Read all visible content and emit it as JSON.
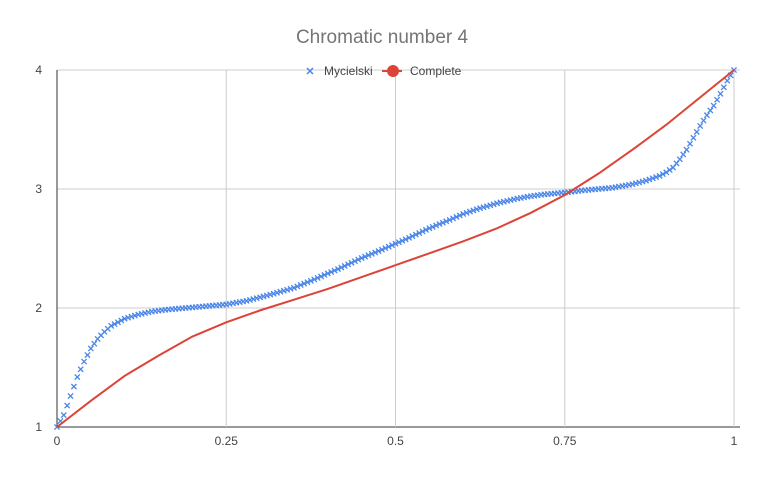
{
  "chart_data": {
    "type": "line",
    "title": "Chromatic number 4",
    "xlabel": "",
    "ylabel": "",
    "xlim": [
      0,
      1
    ],
    "ylim": [
      1,
      4
    ],
    "x_ticks": [
      {
        "value": 0,
        "label": "0"
      },
      {
        "value": 0.25,
        "label": "0.25"
      },
      {
        "value": 0.5,
        "label": "0.5"
      },
      {
        "value": 0.75,
        "label": "0.75"
      },
      {
        "value": 1,
        "label": "1"
      }
    ],
    "y_ticks": [
      {
        "value": 1,
        "label": "1"
      },
      {
        "value": 2,
        "label": "2"
      },
      {
        "value": 3,
        "label": "3"
      },
      {
        "value": 4,
        "label": "4"
      }
    ],
    "grid": true,
    "legend_position": "top",
    "series": [
      {
        "name": "Mycielski",
        "style": "markers-x",
        "color": "#4a86e8",
        "x": [
          0,
          0.01,
          0.02,
          0.03,
          0.04,
          0.05,
          0.06,
          0.07,
          0.08,
          0.09,
          0.1,
          0.12,
          0.14,
          0.16,
          0.18,
          0.2,
          0.22,
          0.25,
          0.28,
          0.3,
          0.32,
          0.35,
          0.38,
          0.4,
          0.42,
          0.45,
          0.48,
          0.5,
          0.52,
          0.55,
          0.58,
          0.6,
          0.62,
          0.65,
          0.68,
          0.7,
          0.72,
          0.75,
          0.78,
          0.8,
          0.82,
          0.85,
          0.87,
          0.89,
          0.9,
          0.91,
          0.92,
          0.93,
          0.94,
          0.95,
          0.96,
          0.97,
          0.98,
          0.99,
          1
        ],
        "y": [
          1,
          1.1,
          1.26,
          1.42,
          1.55,
          1.66,
          1.74,
          1.8,
          1.85,
          1.88,
          1.91,
          1.945,
          1.97,
          1.985,
          1.995,
          2.005,
          2.015,
          2.03,
          2.06,
          2.09,
          2.12,
          2.17,
          2.24,
          2.29,
          2.34,
          2.42,
          2.49,
          2.54,
          2.59,
          2.67,
          2.74,
          2.79,
          2.83,
          2.88,
          2.92,
          2.94,
          2.955,
          2.97,
          2.99,
          3.0,
          3.01,
          3.04,
          3.07,
          3.11,
          3.14,
          3.18,
          3.25,
          3.33,
          3.43,
          3.53,
          3.62,
          3.7,
          3.8,
          3.91,
          4
        ]
      },
      {
        "name": "Complete",
        "style": "line",
        "color": "#db4437",
        "x": [
          0,
          0.05,
          0.1,
          0.15,
          0.2,
          0.25,
          0.3,
          0.35,
          0.4,
          0.45,
          0.5,
          0.55,
          0.6,
          0.65,
          0.7,
          0.75,
          0.8,
          0.85,
          0.9,
          0.95,
          1
        ],
        "y": [
          1,
          1.22,
          1.43,
          1.6,
          1.76,
          1.88,
          1.98,
          2.07,
          2.16,
          2.26,
          2.36,
          2.46,
          2.56,
          2.67,
          2.8,
          2.95,
          3.13,
          3.33,
          3.54,
          3.77,
          4
        ]
      }
    ]
  }
}
